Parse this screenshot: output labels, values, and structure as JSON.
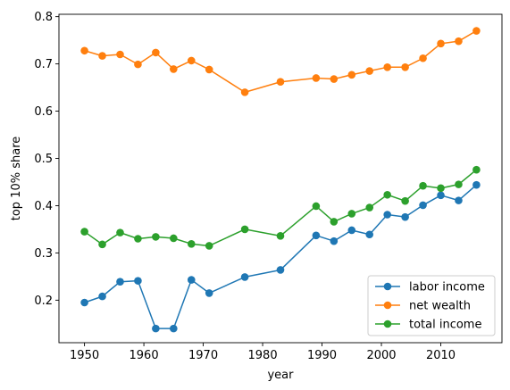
{
  "chart_data": {
    "type": "line",
    "xlabel": "year",
    "ylabel": "top 10% share",
    "xlim": [
      1945.7,
      2020.3
    ],
    "ylim": [
      0.11,
      0.805
    ],
    "xticks": [
      1950,
      1960,
      1970,
      1980,
      1990,
      2000,
      2010
    ],
    "yticks": [
      0.2,
      0.3,
      0.4,
      0.5,
      0.6,
      0.7,
      0.8
    ],
    "xtick_labels": [
      "1950",
      "1960",
      "1970",
      "1980",
      "1990",
      "2000",
      "2010"
    ],
    "ytick_labels": [
      "0.2",
      "0.3",
      "0.4",
      "0.5",
      "0.6",
      "0.7",
      "0.8"
    ],
    "grid": false,
    "legend_position": "lower-right",
    "x": [
      1950,
      1953,
      1956,
      1959,
      1962,
      1965,
      1968,
      1971,
      1977,
      1983,
      1989,
      1992,
      1995,
      1998,
      2001,
      2004,
      2007,
      2010,
      2013,
      2016
    ],
    "series": [
      {
        "name": "labor income",
        "color": "#1f77b4",
        "values": [
          0.195,
          0.208,
          0.239,
          0.241,
          0.14,
          0.14,
          0.243,
          0.215,
          0.249,
          0.264,
          0.337,
          0.325,
          0.348,
          0.339,
          0.381,
          0.376,
          0.401,
          0.422,
          0.411,
          0.444
        ]
      },
      {
        "name": "net wealth",
        "color": "#ff7f0e",
        "values": [
          0.728,
          0.717,
          0.72,
          0.699,
          0.724,
          0.689,
          0.707,
          0.688,
          0.64,
          0.662,
          0.67,
          0.668,
          0.677,
          0.685,
          0.693,
          0.693,
          0.712,
          0.743,
          0.748,
          0.77
        ]
      },
      {
        "name": "total income",
        "color": "#2ca02c",
        "values": [
          0.345,
          0.318,
          0.343,
          0.33,
          0.334,
          0.331,
          0.319,
          0.315,
          0.35,
          0.336,
          0.399,
          0.366,
          0.383,
          0.396,
          0.423,
          0.41,
          0.442,
          0.437,
          0.445,
          0.476
        ]
      }
    ]
  }
}
